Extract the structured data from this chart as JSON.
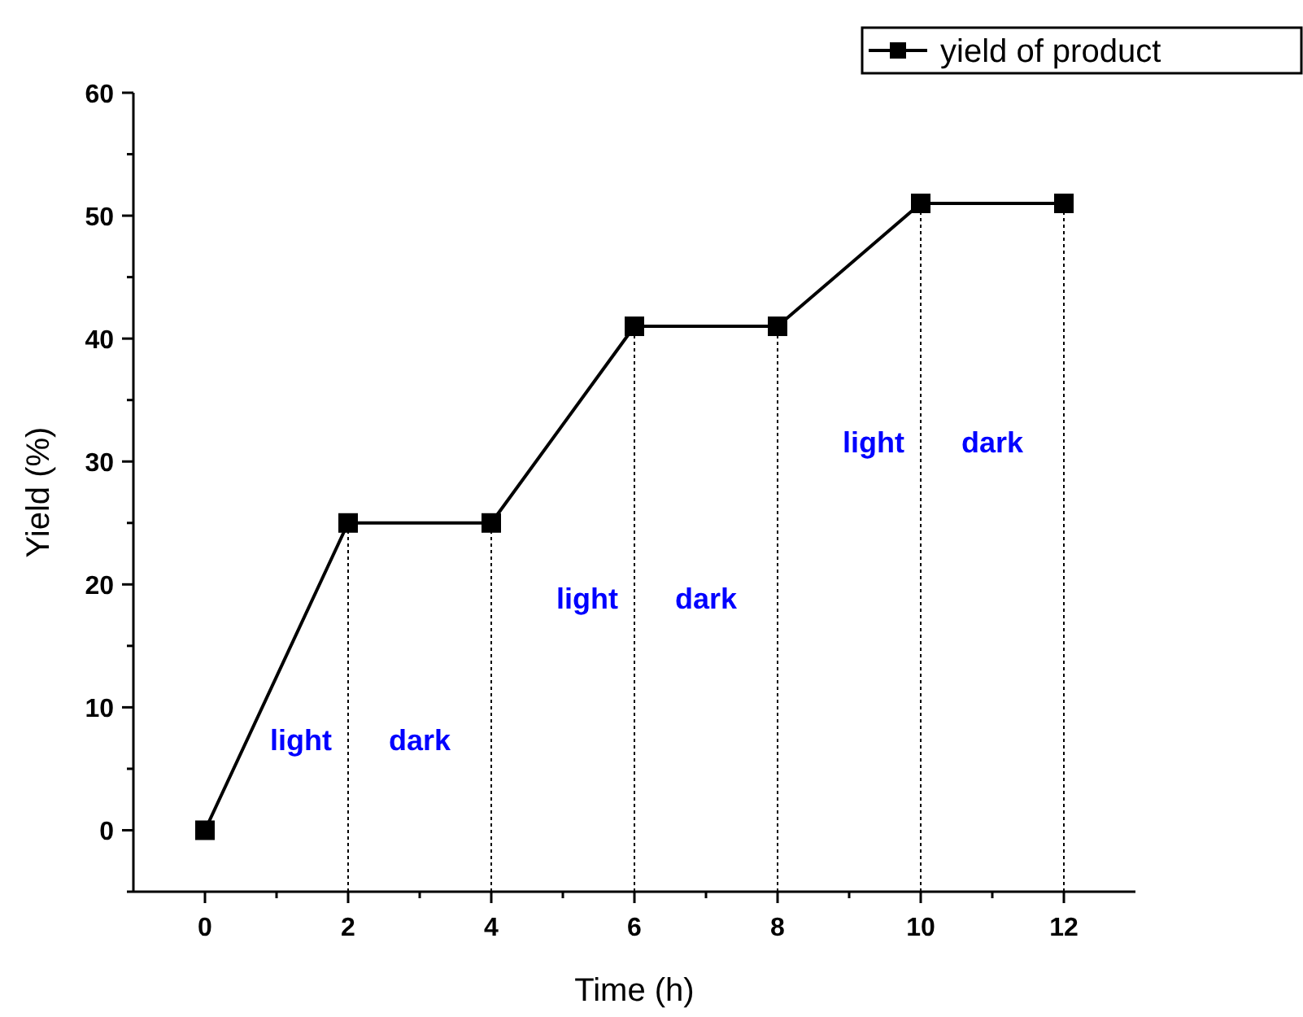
{
  "chart_data": {
    "type": "line",
    "xlabel": "Time (h)",
    "ylabel": "Yield (%)",
    "x": [
      0,
      2,
      4,
      6,
      8,
      10,
      12
    ],
    "series": [
      {
        "name": "yield of product",
        "color": "#000000",
        "values": [
          0,
          25,
          25,
          41,
          41,
          51,
          51
        ]
      }
    ],
    "xlim": [
      -1,
      13
    ],
    "xticks": [
      0,
      2,
      4,
      6,
      8,
      10,
      12
    ],
    "ylim": [
      -5,
      60
    ],
    "yticks": [
      0,
      10,
      20,
      30,
      40,
      50,
      60
    ],
    "marker": "square",
    "line_style": "solid",
    "grid": false,
    "legend": "top right",
    "ref_lines": [
      {
        "axis": "x",
        "value": 2,
        "line_style": "dotted",
        "color": "#000000"
      },
      {
        "axis": "x",
        "value": 4,
        "line_style": "dotted",
        "color": "#000000"
      },
      {
        "axis": "x",
        "value": 6,
        "line_style": "dotted",
        "color": "#000000"
      },
      {
        "axis": "x",
        "value": 8,
        "line_style": "dotted",
        "color": "#000000"
      },
      {
        "axis": "x",
        "value": 10,
        "line_style": "dotted",
        "color": "#000000"
      },
      {
        "axis": "x",
        "value": 12,
        "line_style": "dotted",
        "color": "#000000"
      }
    ],
    "annotations": [
      "light",
      "dark",
      "light",
      "dark",
      "light",
      "dark"
    ]
  }
}
